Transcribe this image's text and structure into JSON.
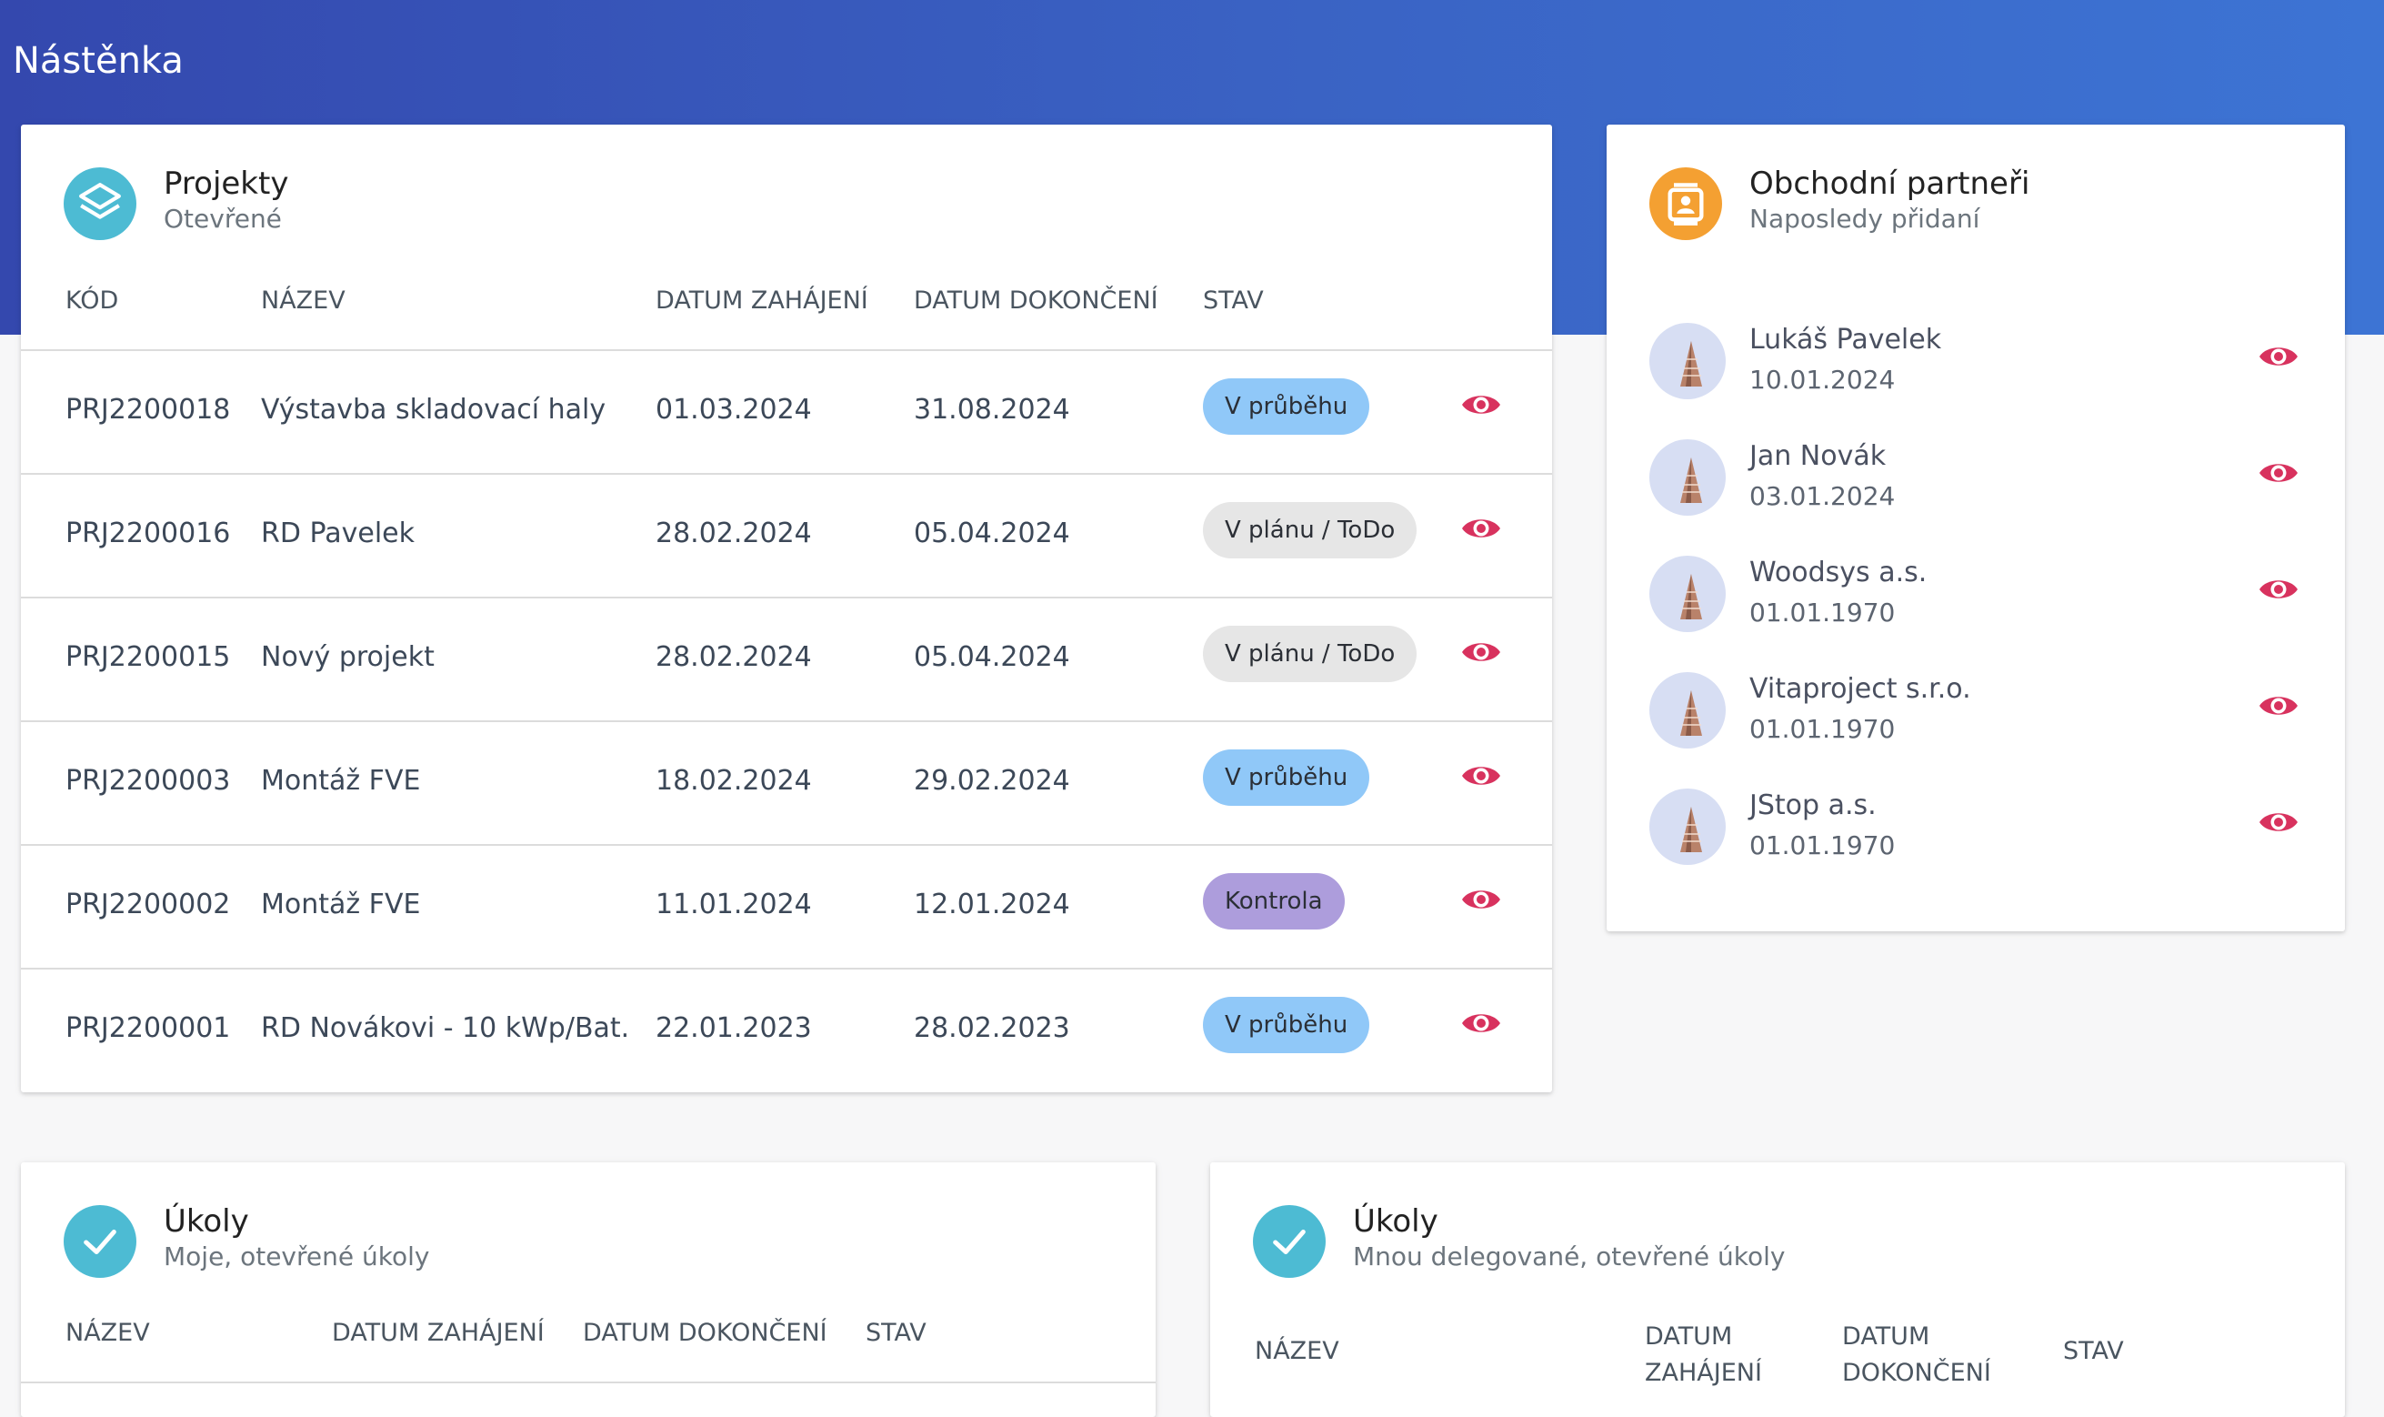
{
  "page": {
    "title": "Nástěnka"
  },
  "projects": {
    "title": "Projekty",
    "subtitle": "Otevřené",
    "columns": {
      "code": "KÓD",
      "name": "NÁZEV",
      "start": "DATUM ZAHÁJENÍ",
      "end": "DATUM DOKONČENÍ",
      "status": "STAV"
    },
    "rows": [
      {
        "code": "PRJ2200018",
        "name": "Výstavba skladovací haly",
        "start": "01.03.2024",
        "end": "31.08.2024",
        "status": "V průběhu"
      },
      {
        "code": "PRJ2200016",
        "name": "RD Pavelek",
        "start": "28.02.2024",
        "end": "05.04.2024",
        "status": "V plánu / ToDo"
      },
      {
        "code": "PRJ2200015",
        "name": "Nový projekt",
        "start": "28.02.2024",
        "end": "05.04.2024",
        "status": "V plánu / ToDo"
      },
      {
        "code": "PRJ2200003",
        "name": "Montáž FVE",
        "start": "18.02.2024",
        "end": "29.02.2024",
        "status": "V průběhu"
      },
      {
        "code": "PRJ2200002",
        "name": "Montáž FVE",
        "start": "11.01.2024",
        "end": "12.01.2024",
        "status": "Kontrola"
      },
      {
        "code": "PRJ2200001",
        "name": "RD Novákovi - 10 kWp/Bat.",
        "start": "22.01.2023",
        "end": "28.02.2023",
        "status": "V průběhu"
      }
    ]
  },
  "partners": {
    "title": "Obchodní partneři",
    "subtitle": "Naposledy přidaní",
    "items": [
      {
        "name": "Lukáš Pavelek",
        "date": "10.01.2024"
      },
      {
        "name": "Jan Novák",
        "date": "03.01.2024"
      },
      {
        "name": "Woodsys a.s.",
        "date": "01.01.1970"
      },
      {
        "name": "Vitaproject s.r.o.",
        "date": "01.01.1970"
      },
      {
        "name": "JStop a.s.",
        "date": "01.01.1970"
      }
    ]
  },
  "tasks_mine": {
    "title": "Úkoly",
    "subtitle": "Moje, otevřené úkoly",
    "columns": {
      "name": "NÁZEV",
      "start": "DATUM ZAHÁJENÍ",
      "end": "DATUM DOKONČENÍ",
      "status": "STAV"
    }
  },
  "tasks_delegated": {
    "title": "Úkoly",
    "subtitle": "Mnou delegované, otevřené úkoly",
    "columns": {
      "name": "NÁZEV",
      "start_line1": "DATUM",
      "start_line2": "ZAHÁJENÍ",
      "end_line1": "DATUM",
      "end_line2": "DOKONČENÍ",
      "status": "STAV"
    }
  },
  "colors": {
    "header_gradient_start": "#3448ae",
    "header_gradient_end": "#3d74d4",
    "accent_eye": "#d8325e",
    "badge_in_progress": "#90c8f8",
    "badge_planned": "#e6e6e6",
    "badge_review": "#ad9ddc",
    "icon_teal": "#4dbbd3",
    "icon_orange": "#f4a032"
  },
  "icons": {
    "projects": "layers-icon",
    "partners": "contact-card-icon",
    "tasks": "check-icon",
    "view": "eye-icon",
    "avatar": "building-avatar"
  }
}
